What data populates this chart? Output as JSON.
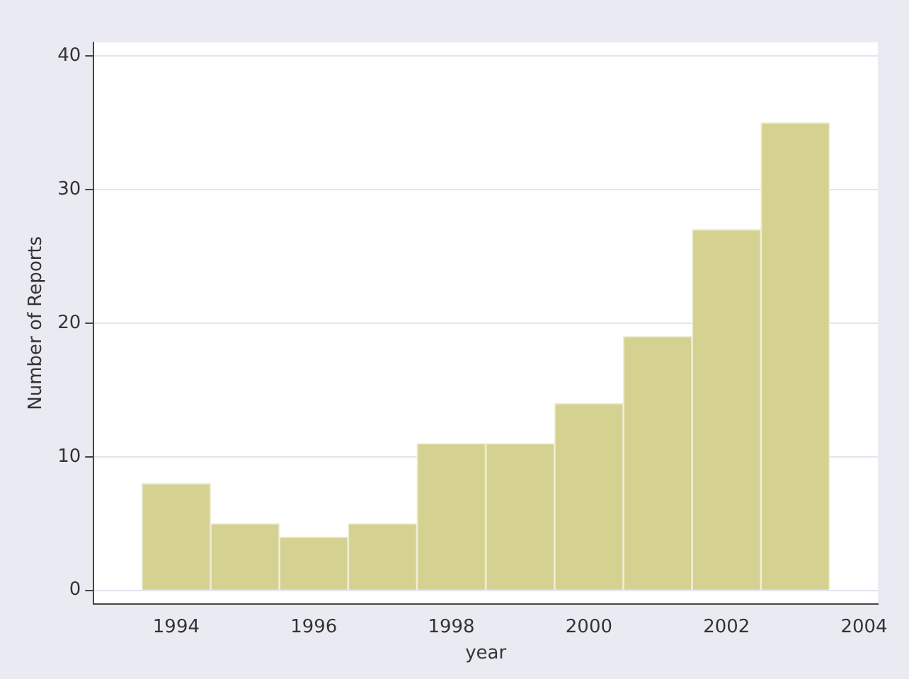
{
  "chart_data": {
    "type": "histogram",
    "xlabel": "year",
    "ylabel": "Number of Reports",
    "bins": [
      1993.5,
      1994.5,
      1995.5,
      1996.5,
      1997.5,
      1998.5,
      1999.5,
      2000.5,
      2001.5,
      2002.5,
      2003.5
    ],
    "values": [
      8,
      5,
      4,
      5,
      11,
      11,
      14,
      19,
      27,
      35
    ],
    "color": "#d5d190",
    "xlim": [
      1992.8,
      2004.2
    ],
    "xticks": [
      1994,
      1996,
      1998,
      2000,
      2002,
      2004
    ],
    "ylim": [
      -1,
      41
    ],
    "yticks": [
      0,
      10,
      20,
      30,
      40
    ],
    "grid": "y"
  }
}
